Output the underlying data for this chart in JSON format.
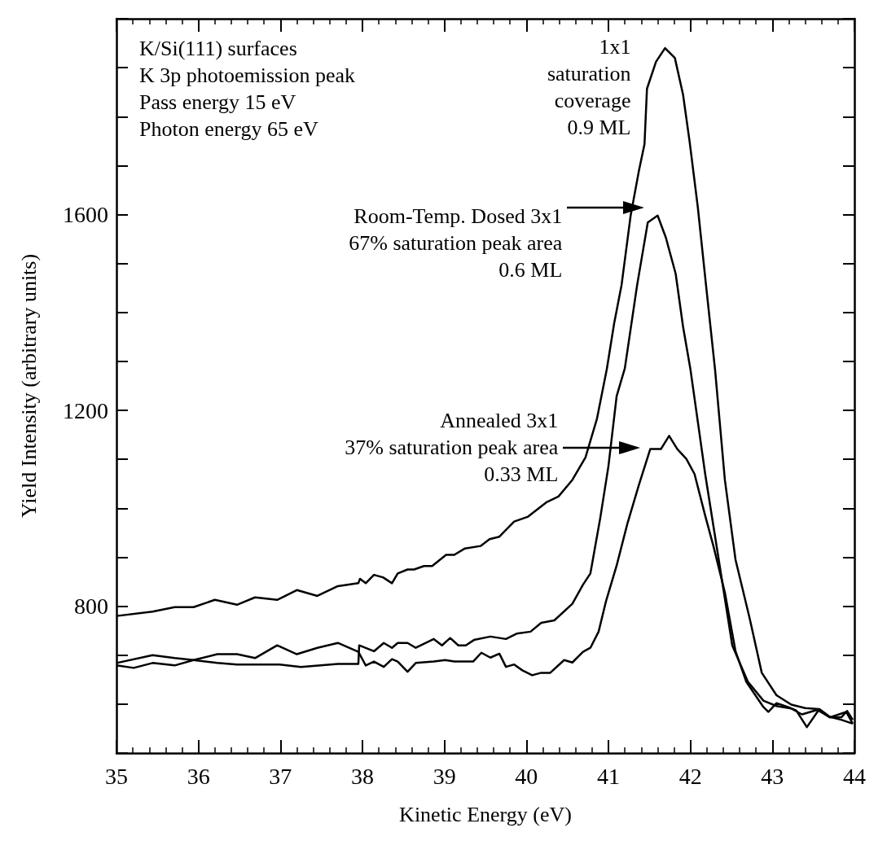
{
  "chart_data": {
    "type": "line",
    "xlabel": "Kinetic Energy (eV)",
    "ylabel": "Yield Intensity (arbitrary units)",
    "xlim": [
      35,
      44
    ],
    "xticks": [
      35,
      36,
      37,
      38,
      39,
      40,
      41,
      42,
      43,
      44
    ],
    "ylim": [
      500,
      2000
    ],
    "yticks": [
      {
        "value": 500,
        "label": null
      },
      {
        "value": 600,
        "label": null
      },
      {
        "value": 700,
        "label": null
      },
      800,
      {
        "value": 900,
        "label": null
      },
      {
        "value": 1000,
        "label": null
      },
      {
        "value": 1100,
        "label": null
      },
      1200,
      {
        "value": 1300,
        "label": null
      },
      {
        "value": 1400,
        "label": null
      },
      {
        "value": 1500,
        "label": null
      },
      1600,
      {
        "value": 1700,
        "label": null
      },
      {
        "value": 1800,
        "label": null
      },
      {
        "value": 1900,
        "label": null
      },
      {
        "value": 2000,
        "label": null
      }
    ],
    "grid": false,
    "marker": "none",
    "line_style": "solid",
    "annotations": [
      "K/Si(111) surfaces\nK 3p photoemission peak\nPass energy 15 eV\nPhoton energy 65 eV",
      "1x1\nsaturation\ncoverage\n0.9 ML",
      "Room-Temp. Dosed 3x1\n67% saturation peak area\n0.6 ML",
      "Annealed 3x1\n37% saturation peak area\n0.33 ML"
    ],
    "series": [
      {
        "color": "#000000",
        "x": [
          35.0,
          35.44,
          35.71,
          35.94,
          36.2,
          36.47,
          36.69,
          36.96,
          37.2,
          37.45,
          37.7,
          37.95,
          37.97,
          38.04,
          38.14,
          38.25,
          38.36,
          38.43,
          38.55,
          38.63,
          38.75,
          38.85,
          39.02,
          39.12,
          39.25,
          39.44,
          39.55,
          39.67,
          39.85,
          40.02,
          40.25,
          40.39,
          40.56,
          40.72,
          40.86,
          40.98,
          41.07,
          41.16,
          41.27,
          41.37,
          41.44,
          41.47,
          41.58,
          41.69,
          41.81,
          41.91,
          41.99,
          42.09,
          42.19,
          42.3,
          42.42,
          42.55,
          42.72,
          42.87,
          43.05,
          43.23,
          43.4,
          43.57,
          43.7,
          43.84,
          43.98
        ],
        "values": [
          780,
          789,
          798,
          798,
          813,
          803,
          818,
          813,
          833,
          821,
          841,
          847,
          856,
          847,
          864,
          859,
          847,
          867,
          875,
          875,
          882,
          882,
          905,
          905,
          918,
          923,
          937,
          942,
          973,
          983,
          1013,
          1024,
          1058,
          1104,
          1183,
          1284,
          1378,
          1456,
          1597,
          1688,
          1744,
          1857,
          1912,
          1940,
          1920,
          1845,
          1749,
          1615,
          1456,
          1284,
          1058,
          895,
          777,
          664,
          618,
          599,
          592,
          590,
          574,
          568,
          560
        ]
      },
      {
        "color": "#000000",
        "x": [
          35.0,
          35.44,
          35.71,
          35.94,
          36.23,
          36.47,
          36.99,
          37.25,
          37.7,
          37.95,
          37.96,
          38.14,
          38.26,
          38.36,
          38.43,
          38.55,
          38.65,
          38.87,
          38.97,
          39.07,
          39.17,
          39.26,
          39.36,
          39.56,
          39.75,
          39.88,
          40.05,
          40.18,
          40.34,
          40.56,
          40.69,
          40.78,
          40.9,
          41.0,
          41.1,
          41.2,
          41.35,
          41.48,
          41.6,
          41.7,
          41.82,
          41.91,
          42.0,
          42.18,
          42.35,
          42.51,
          42.7,
          42.89,
          43.05,
          43.23,
          43.36,
          43.56,
          43.7,
          43.9,
          43.98
        ],
        "values": [
          684,
          700,
          694,
          690,
          684,
          681,
          681,
          676,
          682,
          682,
          720,
          708,
          725,
          715,
          725,
          725,
          715,
          733,
          720,
          735,
          720,
          720,
          731,
          738,
          733,
          744,
          748,
          766,
          771,
          805,
          844,
          867,
          980,
          1086,
          1229,
          1286,
          1456,
          1584,
          1598,
          1553,
          1479,
          1371,
          1284,
          1070,
          890,
          720,
          646,
          607,
          596,
          591,
          579,
          589,
          573,
          584,
          560
        ]
      },
      {
        "color": "#000000",
        "x": [
          35.0,
          35.21,
          35.44,
          35.71,
          35.94,
          36.23,
          36.47,
          36.69,
          36.96,
          37.2,
          37.45,
          37.7,
          37.95,
          38.04,
          38.14,
          38.26,
          38.36,
          38.43,
          38.55,
          38.65,
          38.87,
          39.01,
          39.12,
          39.35,
          39.45,
          39.56,
          39.67,
          39.75,
          39.85,
          39.95,
          40.07,
          40.18,
          40.29,
          40.46,
          40.56,
          40.69,
          40.78,
          40.88,
          40.97,
          41.1,
          41.23,
          41.37,
          41.51,
          41.64,
          41.74,
          41.84,
          41.95,
          42.05,
          42.18,
          42.28,
          42.42,
          42.55,
          42.68,
          42.89,
          42.95,
          43.05,
          43.19,
          43.29,
          43.42,
          43.56,
          43.7,
          43.84,
          43.91,
          43.98
        ],
        "values": [
          679,
          674,
          684,
          679,
          690,
          702,
          702,
          694,
          720,
          702,
          715,
          725,
          707,
          679,
          687,
          676,
          692,
          687,
          666,
          684,
          687,
          690,
          687,
          687,
          705,
          695,
          703,
          676,
          681,
          669,
          659,
          664,
          664,
          690,
          685,
          707,
          715,
          748,
          810,
          883,
          968,
          1047,
          1121,
          1121,
          1148,
          1121,
          1101,
          1070,
          985,
          923,
          828,
          708,
          646,
          594,
          584,
          602,
          594,
          587,
          553,
          587,
          573,
          573,
          586,
          568
        ]
      }
    ]
  }
}
